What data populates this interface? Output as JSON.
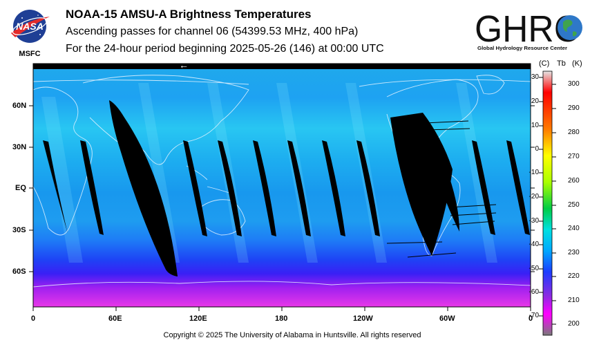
{
  "header": {
    "title": "NOAA-15 AMSU-A Brightness Temperatures",
    "subtitle": "Ascending passes for channel 06 (54399.53 MHz, 400 hPa)",
    "period": "For the 24-hour period beginning 2025-05-26 (146) at 00:00 UTC"
  },
  "logos": {
    "nasa": {
      "text": "NASA",
      "caption": "MSFC"
    },
    "ghrc": {
      "text": "GHRC",
      "caption": "Global Hydrology Resource Center"
    }
  },
  "map": {
    "satellite_direction_marker": "←",
    "lat_labels": [
      "60N",
      "30N",
      "EQ",
      "30S",
      "60S"
    ],
    "lon_labels": [
      "0",
      "60E",
      "120E",
      "180",
      "120W",
      "60W",
      "0"
    ]
  },
  "colorbar": {
    "unit_c": "(C)",
    "unit_tb": "Tb",
    "unit_k": "(K)",
    "celsius_ticks": [
      "30",
      "20",
      "10",
      "0",
      "-10",
      "-20",
      "-30",
      "-40",
      "-50",
      "-60",
      "-70"
    ],
    "kelvin_ticks": [
      "300",
      "290",
      "280",
      "270",
      "260",
      "250",
      "240",
      "230",
      "220",
      "210",
      "200"
    ],
    "colors": [
      "#e8e8e8",
      "#ff0000",
      "#ff8c00",
      "#ffff00",
      "#22aa22",
      "#00ddff",
      "#2233ff",
      "#ff00ff",
      "#808080"
    ]
  },
  "footer": {
    "copyright": "Copyright © 2025 The University of Alabama in Huntsville.  All rights reserved"
  }
}
